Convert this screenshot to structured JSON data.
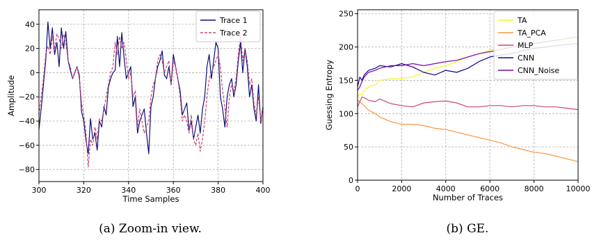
{
  "chart_data": [
    {
      "type": "line",
      "caption": "(a) Zoom-in view.",
      "xlabel": "Time Samples",
      "ylabel": "Amplitude",
      "xlim": [
        300,
        400
      ],
      "ylim": [
        -90,
        52
      ],
      "xticks": [
        300,
        320,
        340,
        360,
        380,
        400
      ],
      "yticks": [
        -80,
        -60,
        -40,
        -20,
        0,
        20,
        40
      ],
      "grid": true,
      "legend_position": "top-right",
      "series": [
        {
          "name": "Trace 1",
          "color": "#0c0c78",
          "style": "solid",
          "x": [
            300,
            301,
            302,
            303,
            304,
            305,
            306,
            307,
            308,
            309,
            310,
            311,
            312,
            313,
            314,
            315,
            316,
            317,
            318,
            319,
            320,
            321,
            322,
            323,
            324,
            325,
            326,
            327,
            328,
            329,
            330,
            331,
            332,
            333,
            334,
            335,
            336,
            337,
            338,
            339,
            340,
            341,
            342,
            343,
            344,
            345,
            346,
            347,
            348,
            349,
            350,
            351,
            352,
            353,
            354,
            355,
            356,
            357,
            358,
            359,
            360,
            361,
            362,
            363,
            364,
            365,
            366,
            367,
            368,
            369,
            370,
            371,
            372,
            373,
            374,
            375,
            376,
            377,
            378,
            379,
            380,
            381,
            382,
            383,
            384,
            385,
            386,
            387,
            388,
            389,
            390,
            391,
            392,
            393,
            394,
            395,
            396,
            397,
            398,
            399,
            400
          ],
          "y": [
            -47,
            -30,
            -10,
            10,
            42,
            20,
            37,
            15,
            25,
            5,
            37,
            20,
            34,
            10,
            2,
            -5,
            0,
            5,
            -2,
            -32,
            -40,
            -56,
            -67,
            -38,
            -55,
            -50,
            -64,
            -40,
            -45,
            -28,
            -35,
            -12,
            -5,
            0,
            2,
            30,
            5,
            33,
            12,
            -5,
            0,
            5,
            -28,
            -20,
            -50,
            -40,
            -35,
            -30,
            -50,
            -67,
            -28,
            -20,
            -5,
            5,
            10,
            18,
            -2,
            -5,
            5,
            -10,
            15,
            5,
            -5,
            -15,
            -35,
            -30,
            -25,
            -48,
            -40,
            -55,
            -45,
            -35,
            -50,
            -30,
            -20,
            5,
            15,
            -5,
            10,
            25,
            20,
            -20,
            -30,
            -45,
            -20,
            -10,
            -5,
            -20,
            -10,
            10,
            25,
            0,
            20,
            5,
            -20,
            -10,
            -30,
            -40,
            -10,
            -42,
            -28
          ]
        },
        {
          "name": "Trace 2",
          "color": "#c8466e",
          "style": "dashed",
          "x": [
            300,
            301,
            302,
            303,
            304,
            305,
            306,
            307,
            308,
            309,
            310,
            311,
            312,
            313,
            314,
            315,
            316,
            317,
            318,
            319,
            320,
            321,
            322,
            323,
            324,
            325,
            326,
            327,
            328,
            329,
            330,
            331,
            332,
            333,
            334,
            335,
            336,
            337,
            338,
            339,
            340,
            341,
            342,
            343,
            344,
            345,
            346,
            347,
            348,
            349,
            350,
            351,
            352,
            353,
            354,
            355,
            356,
            357,
            358,
            359,
            360,
            361,
            362,
            363,
            364,
            365,
            366,
            367,
            368,
            369,
            370,
            371,
            372,
            373,
            374,
            375,
            376,
            377,
            378,
            379,
            380,
            381,
            382,
            383,
            384,
            385,
            386,
            387,
            388,
            389,
            390,
            391,
            392,
            393,
            394,
            395,
            396,
            397,
            398,
            399,
            400
          ],
          "y": [
            -35,
            -20,
            -5,
            15,
            22,
            15,
            30,
            20,
            32,
            28,
            20,
            32,
            25,
            10,
            5,
            -5,
            0,
            5,
            -5,
            -25,
            -35,
            -50,
            -78,
            -55,
            -60,
            -45,
            -55,
            -38,
            -40,
            -30,
            -20,
            -10,
            0,
            5,
            25,
            15,
            30,
            20,
            25,
            10,
            -5,
            0,
            -20,
            -15,
            -45,
            -30,
            -40,
            -50,
            -45,
            -40,
            -20,
            -10,
            -5,
            10,
            15,
            10,
            0,
            5,
            10,
            -10,
            10,
            5,
            -5,
            -20,
            -40,
            -35,
            -40,
            -50,
            -35,
            -55,
            -60,
            -50,
            -65,
            -55,
            -40,
            -20,
            -5,
            0,
            5,
            10,
            15,
            5,
            -15,
            -30,
            -45,
            -20,
            -10,
            -15,
            -5,
            15,
            30,
            10,
            20,
            10,
            -10,
            -5,
            -25,
            -35,
            -20,
            -40,
            -30
          ]
        }
      ]
    },
    {
      "type": "line",
      "caption": "(b) GE.",
      "xlabel": "Number of Traces",
      "ylabel": "Guessing Entropy",
      "xlim": [
        0,
        10000
      ],
      "ylim": [
        0,
        256
      ],
      "xticks": [
        0,
        2000,
        4000,
        6000,
        8000,
        10000
      ],
      "yticks": [
        0,
        50,
        100,
        150,
        200,
        250
      ],
      "grid": true,
      "legend_position": "top-right",
      "series": [
        {
          "name": "TA",
          "color": "#f0f921",
          "x": [
            0,
            100,
            200,
            300,
            500,
            800,
            1000,
            1500,
            2000,
            2500,
            3000,
            3500,
            4000,
            4500,
            5000,
            5500,
            6000,
            6500,
            7000,
            7500,
            8000,
            8500,
            9000,
            9500,
            10000
          ],
          "y": [
            125,
            130,
            128,
            135,
            140,
            143,
            150,
            152,
            153,
            155,
            162,
            168,
            172,
            178,
            185,
            190,
            195,
            198,
            200,
            202,
            205,
            207,
            208,
            209,
            210
          ]
        },
        {
          "name": "TA_PCA",
          "color": "#f89540",
          "x": [
            0,
            100,
            200,
            300,
            500,
            800,
            1000,
            1500,
            2000,
            2500,
            3000,
            3500,
            4000,
            4500,
            5000,
            5500,
            6000,
            6500,
            7000,
            7500,
            8000,
            8500,
            9000,
            9500,
            10000
          ],
          "y": [
            120,
            118,
            115,
            112,
            105,
            100,
            95,
            88,
            84,
            84,
            82,
            78,
            76,
            72,
            68,
            64,
            60,
            56,
            50,
            46,
            42,
            40,
            36,
            32,
            28
          ]
        },
        {
          "name": "MLP",
          "color": "#cc4778",
          "x": [
            0,
            100,
            200,
            300,
            500,
            800,
            1000,
            1500,
            2000,
            2500,
            3000,
            3500,
            4000,
            4500,
            5000,
            5500,
            6000,
            6500,
            7000,
            7500,
            8000,
            8500,
            9000,
            9500,
            10000
          ],
          "y": [
            110,
            118,
            125,
            124,
            120,
            118,
            122,
            115,
            112,
            110,
            116,
            118,
            119,
            116,
            110,
            110,
            112,
            112,
            110,
            112,
            112,
            110,
            110,
            108,
            106
          ]
        },
        {
          "name": "CNN",
          "color": "#0d0887",
          "x": [
            0,
            100,
            200,
            300,
            500,
            800,
            1000,
            1500,
            2000,
            2500,
            3000,
            3500,
            4000,
            4500,
            5000,
            5500,
            6000,
            6500,
            7000,
            7500,
            8000,
            8500,
            9000,
            9500,
            10000
          ],
          "y": [
            140,
            155,
            150,
            158,
            165,
            168,
            172,
            170,
            175,
            170,
            162,
            158,
            165,
            162,
            168,
            178,
            185,
            188,
            190,
            195,
            198,
            200,
            202,
            204,
            205
          ]
        },
        {
          "name": "CNN_Noise",
          "color": "#7e03a8",
          "x": [
            0,
            100,
            200,
            300,
            500,
            800,
            1000,
            1500,
            2000,
            2500,
            3000,
            3500,
            4000,
            4500,
            5000,
            5500,
            6000,
            6500,
            7000,
            7500,
            8000,
            8500,
            9000,
            9500,
            10000
          ],
          "y": [
            135,
            140,
            148,
            155,
            162,
            165,
            168,
            172,
            172,
            175,
            172,
            175,
            178,
            180,
            185,
            190,
            193,
            196,
            200,
            203,
            205,
            208,
            210,
            213,
            215
          ]
        }
      ]
    }
  ]
}
